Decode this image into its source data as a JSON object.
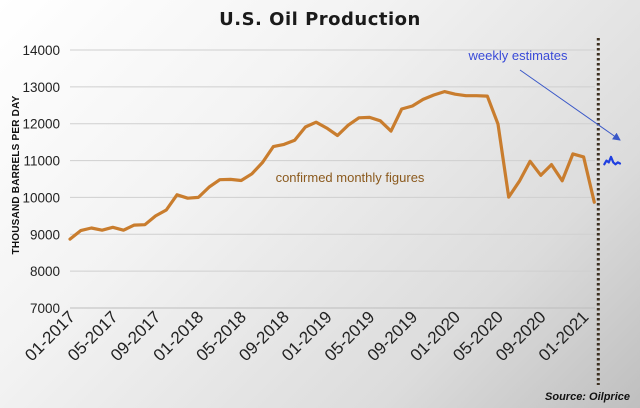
{
  "chart_data": {
    "type": "line",
    "title": "U.S. Oil Production",
    "ylabel": "THOUSAND BARRELS PER DAY",
    "xlabel": "",
    "ylim": [
      7000,
      14000
    ],
    "yticks": [
      7000,
      8000,
      9000,
      10000,
      11000,
      12000,
      13000,
      14000
    ],
    "xtick_labels": [
      "01-2017",
      "05-2017",
      "09-2017",
      "01-2018",
      "05-2018",
      "09-2018",
      "01-2019",
      "05-2019",
      "09-2019",
      "01-2020",
      "05-2020",
      "09-2020",
      "01-2021"
    ],
    "grid": "horizontal",
    "series": [
      {
        "name": "confirmed monthly figures",
        "color": "#c97d2e",
        "x": [
          "01-2017",
          "02-2017",
          "03-2017",
          "04-2017",
          "05-2017",
          "06-2017",
          "07-2017",
          "08-2017",
          "09-2017",
          "10-2017",
          "11-2017",
          "12-2017",
          "01-2018",
          "02-2018",
          "03-2018",
          "04-2018",
          "05-2018",
          "06-2018",
          "07-2018",
          "08-2018",
          "09-2018",
          "10-2018",
          "11-2018",
          "12-2018",
          "01-2019",
          "02-2019",
          "03-2019",
          "04-2019",
          "05-2019",
          "06-2019",
          "07-2019",
          "08-2019",
          "09-2019",
          "10-2019",
          "11-2019",
          "12-2019",
          "01-2020",
          "02-2020",
          "03-2020",
          "04-2020",
          "05-2020",
          "06-2020",
          "07-2020",
          "08-2020",
          "09-2020",
          "10-2020",
          "11-2020",
          "12-2020",
          "01-2021",
          "02-2021"
        ],
        "values": [
          8870,
          9100,
          9170,
          9110,
          9190,
          9110,
          9250,
          9260,
          9500,
          9660,
          10070,
          9980,
          10000,
          10280,
          10480,
          10490,
          10460,
          10640,
          10950,
          11380,
          11440,
          11550,
          11910,
          12040,
          11880,
          11680,
          11960,
          12160,
          12170,
          12080,
          11800,
          12400,
          12480,
          12660,
          12780,
          12870,
          12800,
          12760,
          12760,
          12750,
          11990,
          10010,
          10440,
          10980,
          10600,
          10890,
          10450,
          11180,
          11100,
          9870
        ]
      },
      {
        "name": "weekly estimates",
        "color": "#1f3fe0",
        "x": [
          "w1",
          "w2",
          "w3",
          "w4",
          "w5",
          "w6",
          "w7",
          "w8"
        ],
        "values": [
          10900,
          11000,
          10950,
          11100,
          10950,
          10900,
          10950,
          10920
        ]
      }
    ],
    "annotations": [
      {
        "text": "confirmed monthly figures",
        "color": "#8b5a1e"
      },
      {
        "text": "weekly estimates",
        "color": "#3a4bd8"
      }
    ],
    "source": "Source: Oilprice"
  },
  "colors": {
    "confirmed_line": "#c97d2e",
    "weekly_line": "#1f3fe0",
    "divider": "#3d3020",
    "arrow": "#3a58c8",
    "grid": "#cfcfcf"
  }
}
